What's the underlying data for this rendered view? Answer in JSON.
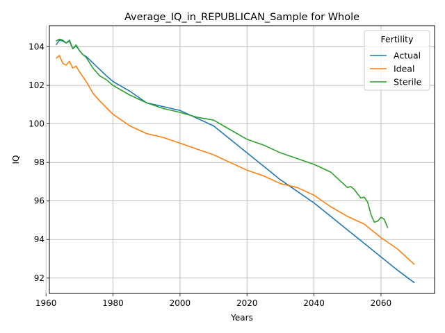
{
  "chart_data": {
    "type": "line",
    "title": "Average_IQ_in_REPUBLICAN_Sample for Whole",
    "xlabel": "Years",
    "ylabel": "IQ",
    "xlim": [
      1961,
      2076
    ],
    "ylim": [
      91.2,
      105.1
    ],
    "x_ticks": [
      1960,
      1980,
      2000,
      2020,
      2040,
      2060
    ],
    "y_ticks": [
      92,
      94,
      96,
      98,
      100,
      102,
      104
    ],
    "grid": true,
    "legend": {
      "title": "Fertility",
      "placement": "top-right"
    },
    "series": [
      {
        "name": "Actual",
        "color": "#1f77b4",
        "points": [
          [
            1963,
            104.1
          ],
          [
            1964,
            104.35
          ],
          [
            1965,
            104.3
          ],
          [
            1966,
            104.2
          ],
          [
            1967,
            104.3
          ],
          [
            1968,
            103.9
          ],
          [
            1969,
            104.05
          ],
          [
            1970,
            103.8
          ],
          [
            1971,
            103.6
          ],
          [
            1972,
            103.5
          ],
          [
            1975,
            103.0
          ],
          [
            1978,
            102.5
          ],
          [
            1980,
            102.2
          ],
          [
            1985,
            101.7
          ],
          [
            1990,
            101.1
          ],
          [
            1995,
            100.9
          ],
          [
            2000,
            100.7
          ],
          [
            2005,
            100.3
          ],
          [
            2010,
            99.9
          ],
          [
            2015,
            99.2
          ],
          [
            2020,
            98.5
          ],
          [
            2025,
            97.8
          ],
          [
            2030,
            97.1
          ],
          [
            2035,
            96.5
          ],
          [
            2040,
            95.9
          ],
          [
            2045,
            95.2
          ],
          [
            2050,
            94.5
          ],
          [
            2055,
            93.8
          ],
          [
            2060,
            93.1
          ],
          [
            2065,
            92.4
          ],
          [
            2070,
            91.75
          ]
        ]
      },
      {
        "name": "Ideal",
        "color": "#ff7f0e",
        "points": [
          [
            1963,
            103.4
          ],
          [
            1964,
            103.55
          ],
          [
            1965,
            103.15
          ],
          [
            1966,
            103.05
          ],
          [
            1967,
            103.25
          ],
          [
            1968,
            102.9
          ],
          [
            1969,
            103.0
          ],
          [
            1970,
            102.7
          ],
          [
            1972,
            102.2
          ],
          [
            1974,
            101.6
          ],
          [
            1976,
            101.2
          ],
          [
            1978,
            100.85
          ],
          [
            1980,
            100.5
          ],
          [
            1985,
            99.9
          ],
          [
            1990,
            99.5
          ],
          [
            1995,
            99.3
          ],
          [
            2000,
            99.0
          ],
          [
            2005,
            98.7
          ],
          [
            2010,
            98.4
          ],
          [
            2015,
            98.0
          ],
          [
            2020,
            97.6
          ],
          [
            2025,
            97.3
          ],
          [
            2030,
            96.9
          ],
          [
            2035,
            96.7
          ],
          [
            2040,
            96.3
          ],
          [
            2045,
            95.7
          ],
          [
            2050,
            95.2
          ],
          [
            2055,
            94.8
          ],
          [
            2060,
            94.1
          ],
          [
            2065,
            93.5
          ],
          [
            2070,
            92.7
          ]
        ]
      },
      {
        "name": "Sterile",
        "color": "#2ca02c",
        "points": [
          [
            1963,
            104.3
          ],
          [
            1964,
            104.4
          ],
          [
            1965,
            104.35
          ],
          [
            1966,
            104.2
          ],
          [
            1967,
            104.35
          ],
          [
            1968,
            103.9
          ],
          [
            1969,
            104.1
          ],
          [
            1970,
            103.8
          ],
          [
            1971,
            103.6
          ],
          [
            1972,
            103.45
          ],
          [
            1974,
            102.9
          ],
          [
            1976,
            102.5
          ],
          [
            1978,
            102.3
          ],
          [
            1980,
            102.0
          ],
          [
            1985,
            101.5
          ],
          [
            1990,
            101.1
          ],
          [
            1995,
            100.8
          ],
          [
            2000,
            100.6
          ],
          [
            2005,
            100.35
          ],
          [
            2010,
            100.2
          ],
          [
            2015,
            99.7
          ],
          [
            2020,
            99.2
          ],
          [
            2025,
            98.9
          ],
          [
            2030,
            98.5
          ],
          [
            2035,
            98.2
          ],
          [
            2040,
            97.9
          ],
          [
            2045,
            97.5
          ],
          [
            2050,
            96.7
          ],
          [
            2051,
            96.75
          ],
          [
            2052,
            96.6
          ],
          [
            2054,
            96.15
          ],
          [
            2055,
            96.2
          ],
          [
            2056,
            95.95
          ],
          [
            2057,
            95.3
          ],
          [
            2058,
            94.9
          ],
          [
            2059,
            94.95
          ],
          [
            2060,
            95.15
          ],
          [
            2061,
            95.05
          ],
          [
            2062,
            94.6
          ]
        ]
      }
    ]
  }
}
